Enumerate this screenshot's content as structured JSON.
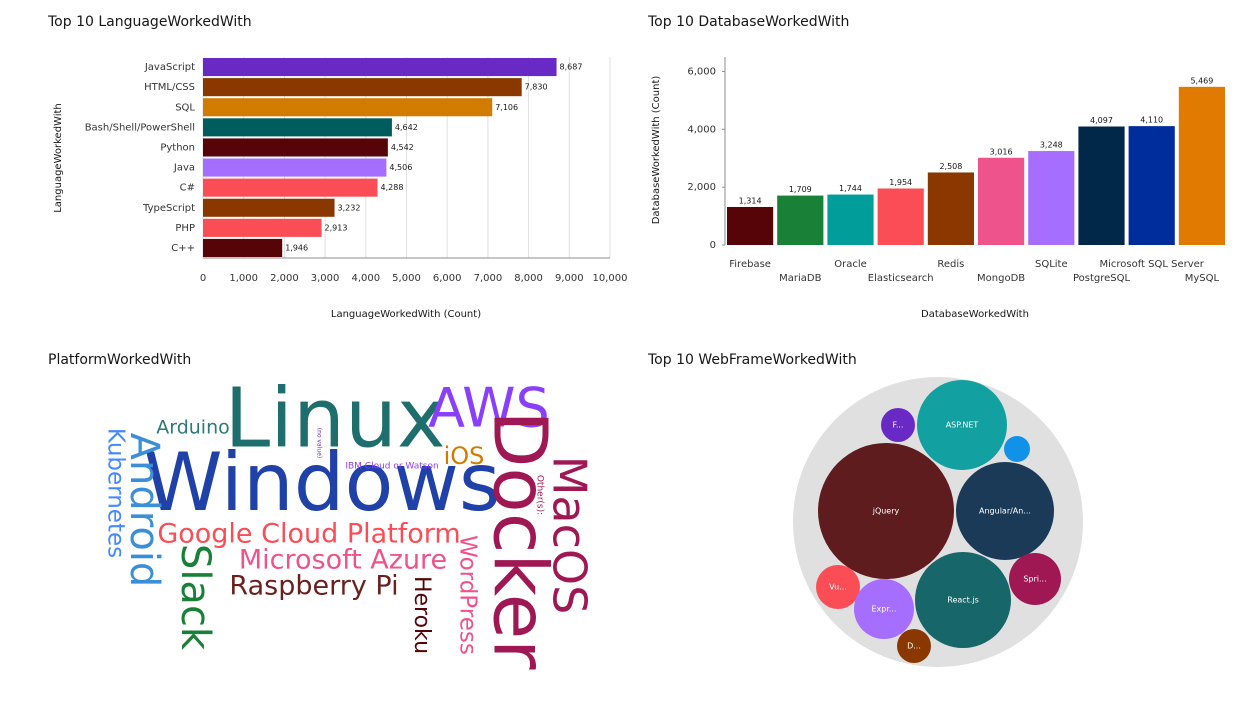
{
  "chart_data": [
    {
      "type": "hbar",
      "title": "Top 10 LanguageWorkedWith",
      "y_label": "LanguageWorkedWith",
      "x_label": "LanguageWorkedWith (Count)",
      "categories": [
        "JavaScript",
        "HTML/CSS",
        "SQL",
        "Bash/Shell/PowerShell",
        "Python",
        "Java",
        "C#",
        "TypeScript",
        "PHP",
        "C++"
      ],
      "values": [
        8687,
        7830,
        7106,
        4642,
        4542,
        4506,
        4288,
        3232,
        2913,
        1946
      ],
      "value_labels": [
        "8,687",
        "7,830",
        "7,106",
        "4,642",
        "4,542",
        "4,506",
        "4,288",
        "3,232",
        "2,913",
        "1,946"
      ],
      "colors": [
        "#6929c4",
        "#8a3800",
        "#d17c00",
        "#005d5d",
        "#570408",
        "#a56eff",
        "#fa4d56",
        "#8a3800",
        "#fa4d56",
        "#570408"
      ],
      "xlim": [
        0,
        10000
      ],
      "xticks": [
        0,
        {
          "value": 1000,
          "label": "1,000"
        },
        {
          "value": 2000,
          "label": "2,000"
        },
        {
          "value": 3000,
          "label": "3,000"
        },
        {
          "value": 4000,
          "label": "4,000"
        },
        {
          "value": 5000,
          "label": "5,000"
        },
        {
          "value": 6000,
          "label": "6,000"
        },
        {
          "value": 7000,
          "label": "7,000"
        },
        {
          "value": 8000,
          "label": "8,000"
        },
        {
          "value": 9000,
          "label": "9,000"
        },
        {
          "value": 10000,
          "label": "10,000"
        }
      ],
      "grid": true
    },
    {
      "type": "bar",
      "title": "Top 10 DatabaseWorkedWith",
      "y_label": "DatabaseWorkedWith (Count)",
      "x_label": "DatabaseWorkedWith",
      "categories": [
        "Firebase",
        "MariaDB",
        "Oracle",
        "Elasticsearch",
        "Redis",
        "MongoDB",
        "SQLite",
        "PostgreSQL",
        "Microsoft SQL Server",
        "MySQL"
      ],
      "values": [
        1314,
        1709,
        1744,
        1954,
        2508,
        3016,
        3248,
        4097,
        4110,
        5469
      ],
      "value_labels": [
        "1,314",
        "1,709",
        "1,744",
        "1,954",
        "2,508",
        "3,016",
        "3,248",
        "4,097",
        "4,110",
        "5,469"
      ],
      "colors": [
        "#570408",
        "#198038",
        "#009d9a",
        "#fa4d56",
        "#8a3800",
        "#ee538b",
        "#a56eff",
        "#012749",
        "#002d9c",
        "#e07a00"
      ],
      "ylim": [
        0,
        6500
      ],
      "yticks": [
        0,
        {
          "value": 2000,
          "label": "2,000"
        },
        {
          "value": 4000,
          "label": "4,000"
        },
        {
          "value": 6000,
          "label": "6,000"
        }
      ],
      "grid": false
    },
    {
      "type": "wordcloud",
      "title": "PlatformWorkedWith",
      "words": [
        "Linux",
        "AWS",
        "Windows",
        "Docker",
        "MacOS",
        "Android",
        "Kubernetes",
        "Arduino",
        "iOS",
        "IBM Cloud or Watson",
        "Google Cloud Platform",
        "Microsoft Azure",
        "Raspberry Pi",
        "Slack",
        "WordPress",
        "Heroku",
        "Other(s):",
        "(no value)"
      ],
      "colors": [
        "#1e6e6e",
        "#8a3ffc",
        "#1f41a8",
        "#9f1853",
        "#9f1853",
        "#3a8fd8",
        "#4589ff",
        "#2b7a78",
        "#d17c00",
        "#8a3ffc",
        "#fa4d56",
        "#ee538b",
        "#6b1f1f",
        "#198038",
        "#ee538b",
        "#570408",
        "#9f1853",
        "#6929c4"
      ]
    },
    {
      "type": "circle_pack",
      "title": "Top 10 WebFrameWorkedWith",
      "labels": [
        "F...",
        "ASP.NET",
        null,
        "jQuery",
        "Angular/An...",
        "Vu...",
        "Expr...",
        "React.js",
        "Spri...",
        "D..."
      ],
      "colors": [
        "#6929c4",
        "#12a0a0",
        "#1192e8",
        "#5e1c1f",
        "#1b3a57",
        "#fa4d56",
        "#a56eff",
        "#17666a",
        "#9f1853",
        "#8a3800"
      ]
    }
  ]
}
